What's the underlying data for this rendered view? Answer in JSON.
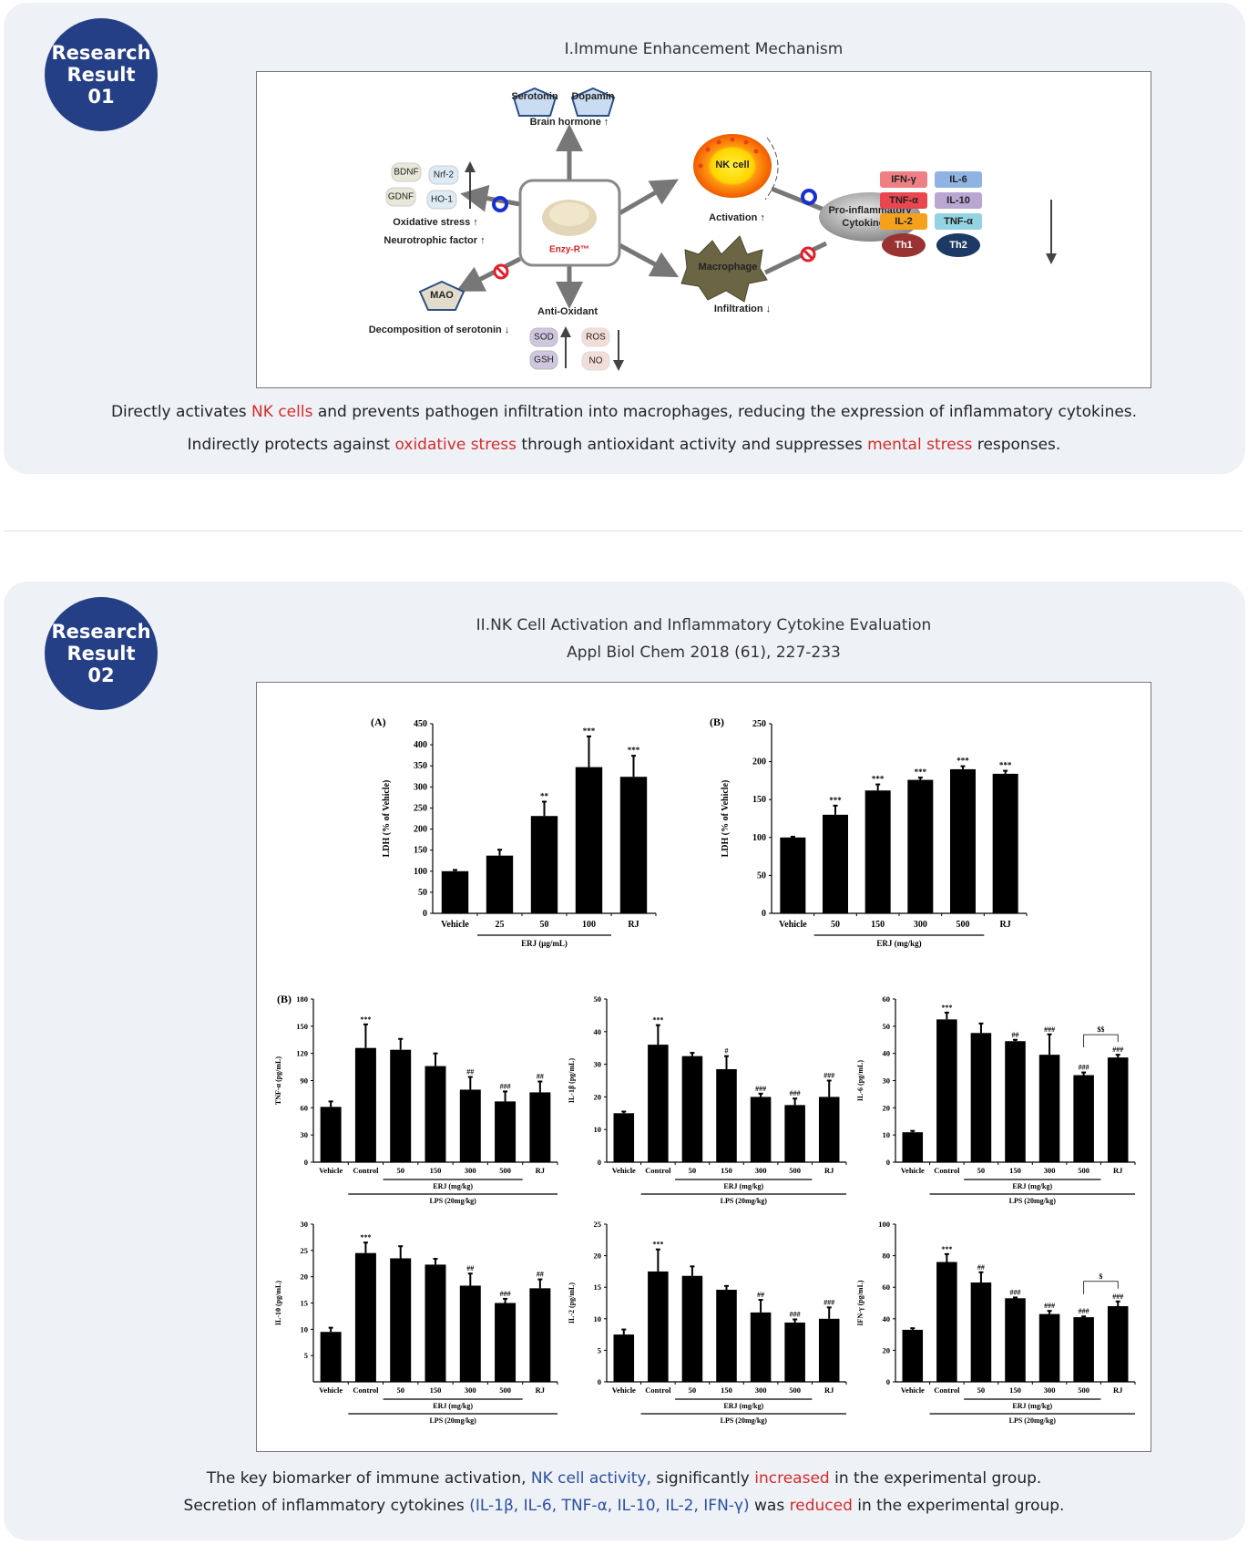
{
  "result1": {
    "badge": [
      "Research",
      "Result",
      "01"
    ],
    "title": "I.Immune Enhancement Mechanism",
    "diagram": {
      "serotonin": "Serotonin",
      "dopamin": "Dopamin",
      "brain_hormone": "Brain hormone ↑",
      "bdnf": "BDNF",
      "nrf2": "Nrf-2",
      "gdnf": "GDNF",
      "ho1": "HO-1",
      "oxidative": "Oxidative stress ↑",
      "neurotrophic": "Neurotrophic factor ↑",
      "product": "Enzy-R™",
      "mao": "MAO",
      "decomposition": "Decomposition of serotonin ↓",
      "antioxidant": "Anti-Oxidant",
      "sod": "SOD",
      "gsh": "GSH",
      "ros": "ROS",
      "no": "NO",
      "nk_cell": "NK cell",
      "activation": "Activation ↑",
      "macrophage": "Macrophage",
      "infiltration": "Infiltration ↓",
      "pro_inflammatory": "Pro-inflammatory",
      "cytokines": "Cytokines ↓",
      "chips": [
        {
          "label": "IFN-γ",
          "color": "#f07f84"
        },
        {
          "label": "IL-6",
          "color": "#8fb4e3"
        },
        {
          "label": "TNF-α",
          "color": "#ea4650"
        },
        {
          "label": "IL-10",
          "color": "#b9a6d2"
        },
        {
          "label": "IL-2",
          "color": "#f6a11c"
        },
        {
          "label": "TNF-α",
          "color": "#93d3e2"
        }
      ],
      "th1": "Th1",
      "th2": "Th2"
    },
    "lines": [
      {
        "a": "Directly activates ",
        "b": "NK cells",
        "c": " and prevents pathogen infiltration into macrophages, reducing the expression of inflammatory cytokines."
      },
      {
        "a": "Indirectly protects against ",
        "b": "oxidative stress",
        "c": " through antioxidant activity and suppresses ",
        "d": "mental stress",
        "e": " responses."
      }
    ]
  },
  "result2": {
    "badge": [
      "Research",
      "Result",
      "02"
    ],
    "title": "II.NK Cell Activation and Inflammatory Cytokine Evaluation",
    "subtitle": "Appl Biol Chem 2018 (61), 227-233",
    "lines": [
      {
        "a": "The key biomarker of immune activation, ",
        "b": "NK cell activity,",
        "c": " significantly ",
        "d": "increased",
        "e": " in the experimental group."
      },
      {
        "a": "Secretion of inflammatory cytokines ",
        "b": "(IL-1β, IL-6, TNF-α, IL-10, IL-2, IFN-γ)",
        "c": " was ",
        "d": "reduced",
        "e": " in the experimental group."
      }
    ]
  },
  "chart_data": [
    {
      "id": "ldh-a",
      "type": "bar",
      "panel": "(A)",
      "ylabel": "LDH (% of Vehicle)",
      "ylim": [
        0,
        450
      ],
      "yticks": [
        0,
        50,
        100,
        150,
        200,
        250,
        300,
        350,
        400,
        450
      ],
      "categories": [
        "Vehicle",
        "25",
        "50",
        "100",
        "RJ"
      ],
      "values": [
        100,
        137,
        231,
        347,
        324
      ],
      "errors": [
        3,
        14,
        34,
        73,
        50
      ],
      "significance": [
        "",
        "",
        "**",
        "***",
        "***"
      ],
      "groups": [
        {
          "label": "ERJ (μg/mL)",
          "from": 1,
          "to": 3
        }
      ]
    },
    {
      "id": "ldh-b",
      "type": "bar",
      "panel": "(B)",
      "ylabel": "LDH (% of Vehicle)",
      "ylim": [
        0,
        250
      ],
      "yticks": [
        0,
        50,
        100,
        150,
        200,
        250
      ],
      "categories": [
        "Vehicle",
        "50",
        "150",
        "300",
        "500",
        "RJ"
      ],
      "values": [
        100,
        130,
        162,
        176,
        190,
        184
      ],
      "errors": [
        1,
        12,
        8,
        3,
        4,
        4
      ],
      "significance": [
        "",
        "***",
        "***",
        "***",
        "***",
        "***"
      ],
      "groups": [
        {
          "label": "ERJ (mg/kg)",
          "from": 1,
          "to": 4
        }
      ]
    },
    {
      "id": "tnf",
      "type": "bar",
      "panel": "(B)",
      "ylabel": "TNF-α (pg/mL)",
      "ylim": [
        0,
        180
      ],
      "yticks": [
        0,
        30,
        60,
        90,
        120,
        150,
        180
      ],
      "categories": [
        "Vehicle",
        "Control",
        "50",
        "150",
        "300",
        "500",
        "RJ"
      ],
      "values": [
        61,
        126,
        124,
        106,
        80,
        67,
        77
      ],
      "errors": [
        6,
        26,
        12,
        14,
        14,
        11,
        12
      ],
      "significance": [
        "",
        "***",
        "",
        "",
        "##",
        "###",
        "##"
      ],
      "groups": [
        {
          "label": "ERJ (mg/kg)",
          "from": 2,
          "to": 5
        },
        {
          "label": "LPS (20mg/kg)",
          "from": 1,
          "to": 6
        }
      ]
    },
    {
      "id": "il1b",
      "type": "bar",
      "panel": "",
      "ylabel": "IL-1β (pg/mL)",
      "ylim": [
        0,
        50
      ],
      "yticks": [
        0,
        10,
        20,
        30,
        40,
        50
      ],
      "categories": [
        "Vehicle",
        "Control",
        "50",
        "150",
        "300",
        "500",
        "RJ"
      ],
      "values": [
        15,
        36,
        32.5,
        28.5,
        20,
        17.5,
        20
      ],
      "errors": [
        0.5,
        6,
        1,
        4,
        1,
        2,
        5
      ],
      "significance": [
        "",
        "***",
        "",
        "#",
        "###",
        "###",
        "###"
      ],
      "groups": [
        {
          "label": "ERJ (mg/kg)",
          "from": 2,
          "to": 5
        },
        {
          "label": "LPS (20mg/kg)",
          "from": 1,
          "to": 6
        }
      ]
    },
    {
      "id": "il6",
      "type": "bar",
      "panel": "",
      "ylabel": "IL-6 (pg/mL)",
      "ylim": [
        0,
        60
      ],
      "yticks": [
        0,
        10,
        20,
        30,
        40,
        50,
        60
      ],
      "categories": [
        "Vehicle",
        "Control",
        "50",
        "150",
        "300",
        "500",
        "RJ"
      ],
      "values": [
        11,
        52.5,
        47.5,
        44.5,
        39.5,
        32,
        38.5
      ],
      "errors": [
        0.5,
        2.5,
        3.5,
        0.5,
        7.5,
        1,
        1
      ],
      "significance": [
        "",
        "***",
        "",
        "##",
        "###",
        "###",
        "###"
      ],
      "bracket": {
        "from": 5,
        "to": 6,
        "label": "$$"
      },
      "groups": [
        {
          "label": "ERJ (mg/kg)",
          "from": 2,
          "to": 5
        },
        {
          "label": "LPS (20mg/kg)",
          "from": 1,
          "to": 6
        }
      ]
    },
    {
      "id": "il10",
      "type": "bar",
      "panel": "",
      "ylabel": "IL-10 (pg/mL)",
      "ylim": [
        0,
        30
      ],
      "yticks": [
        5,
        10,
        15,
        20,
        25,
        30
      ],
      "categories": [
        "Vehicle",
        "Control",
        "50",
        "150",
        "300",
        "500",
        "RJ"
      ],
      "values": [
        9.5,
        24.5,
        23.5,
        22.3,
        18.3,
        15,
        17.8
      ],
      "errors": [
        0.8,
        2,
        2.3,
        1.1,
        2.3,
        0.8,
        1.7
      ],
      "significance": [
        "",
        "***",
        "",
        "",
        "##",
        "###",
        "##"
      ],
      "groups": [
        {
          "label": "ERJ (mg/kg)",
          "from": 2,
          "to": 5
        },
        {
          "label": "LPS (20mg/kg)",
          "from": 1,
          "to": 6
        }
      ]
    },
    {
      "id": "il2",
      "type": "bar",
      "panel": "",
      "ylabel": "IL-2 (pg/mL)",
      "ylim": [
        0,
        25
      ],
      "yticks": [
        0,
        5,
        10,
        15,
        20,
        25
      ],
      "categories": [
        "Vehicle",
        "Control",
        "50",
        "150",
        "300",
        "500",
        "RJ"
      ],
      "values": [
        7.5,
        17.5,
        16.8,
        14.6,
        11,
        9.4,
        10
      ],
      "errors": [
        0.8,
        3.5,
        1.5,
        0.6,
        2,
        0.5,
        1.8
      ],
      "significance": [
        "",
        "***",
        "",
        "",
        "##",
        "###",
        "###"
      ],
      "groups": [
        {
          "label": "ERJ (mg/kg)",
          "from": 2,
          "to": 5
        },
        {
          "label": "LPS (20mg/kg)",
          "from": 1,
          "to": 6
        }
      ]
    },
    {
      "id": "ifng",
      "type": "bar",
      "panel": "",
      "ylabel": "IFN-γ (pg/mL)",
      "ylim": [
        0,
        100
      ],
      "yticks": [
        0,
        20,
        40,
        60,
        80,
        100
      ],
      "categories": [
        "Vehicle",
        "Control",
        "50",
        "150",
        "300",
        "500",
        "RJ"
      ],
      "values": [
        33,
        76,
        63,
        53,
        43,
        41,
        48
      ],
      "errors": [
        1,
        5,
        6.5,
        0.5,
        2,
        0.5,
        3
      ],
      "significance": [
        "",
        "***",
        "##",
        "###",
        "###",
        "###",
        "###"
      ],
      "bracket": {
        "from": 5,
        "to": 6,
        "label": "$"
      },
      "groups": [
        {
          "label": "ERJ (mg/kg)",
          "from": 2,
          "to": 5
        },
        {
          "label": "LPS (20mg/kg)",
          "from": 1,
          "to": 6
        }
      ]
    }
  ]
}
